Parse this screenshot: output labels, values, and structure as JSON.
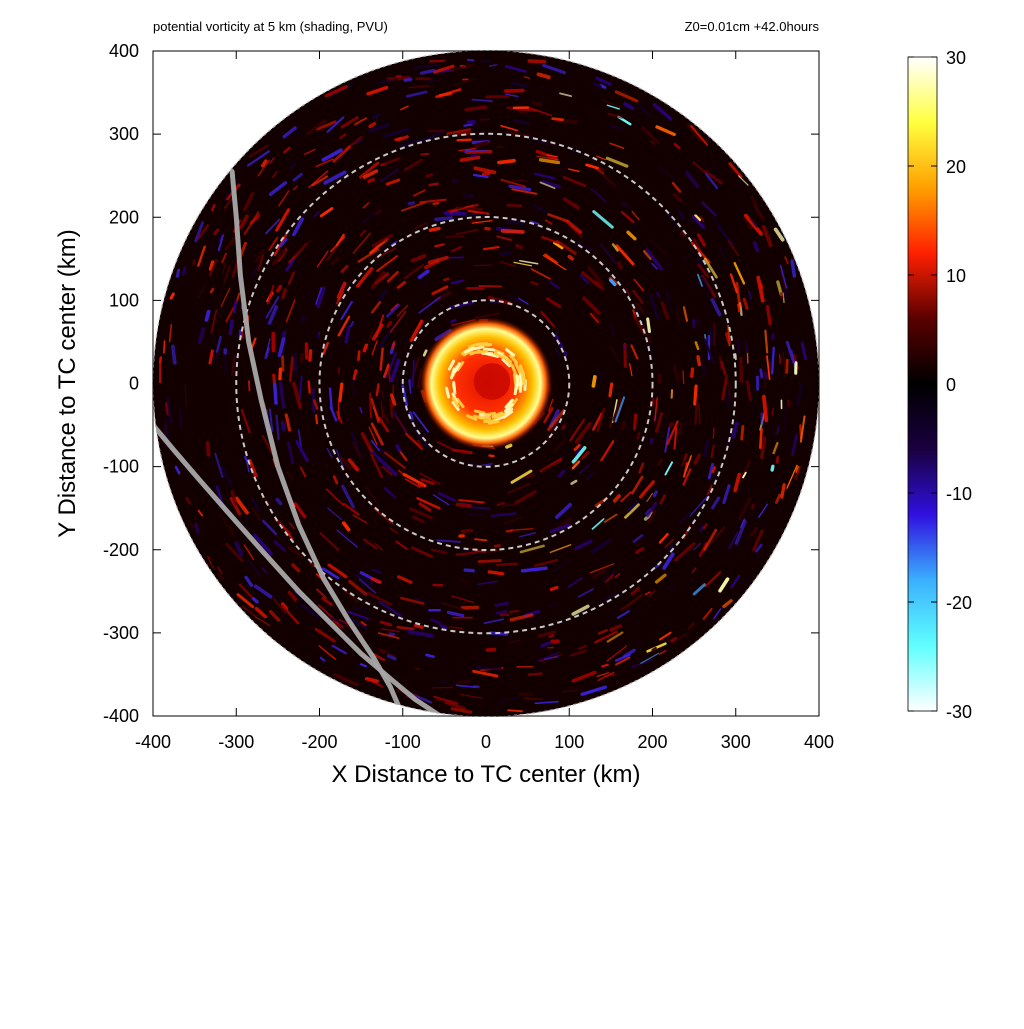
{
  "chart_data": {
    "type": "heatmap",
    "title": "potential vorticity at 5 km (shading, PVU)",
    "subtitle": "Z0=0.01cm  +42.0hours",
    "xlabel": "X Distance to TC center (km)",
    "ylabel": "Y Distance to TC center (km)",
    "xlim": [
      -400,
      400
    ],
    "ylim": [
      -400,
      400
    ],
    "x_ticks": [
      -400,
      -300,
      -200,
      -100,
      0,
      100,
      200,
      300,
      400
    ],
    "y_ticks": [
      -400,
      -300,
      -200,
      -100,
      0,
      100,
      200,
      300,
      400
    ],
    "x_tick_labels": [
      "-400",
      "-300",
      "-200",
      "-100",
      "0",
      "100",
      "200",
      "300",
      "400"
    ],
    "y_tick_labels": [
      "-400",
      "-300",
      "-200",
      "-100",
      "0",
      "100",
      "200",
      "300",
      "400"
    ],
    "domain_radius_km": 400,
    "range_rings_km": [
      100,
      200,
      300
    ],
    "colorbar": {
      "min": -30,
      "max": 30,
      "ticks": [
        30,
        20,
        10,
        0,
        -10,
        -20,
        -30
      ],
      "tick_labels": [
        "30",
        "20",
        "10",
        "0",
        "-10",
        "-20",
        "-30"
      ],
      "colors": [
        "#ffffff",
        "#ffff40",
        "#ffa000",
        "#ff2000",
        "#5a0000",
        "#000000",
        "#1a0040",
        "#3010e0",
        "#3ab0ff",
        "#60ffff",
        "#ffffff"
      ]
    },
    "features": {
      "eyewall_radius_km": 40,
      "eyewall_peak_pv": 30,
      "inner_core_pv": 15
    },
    "tracks": [
      {
        "name": "",
        "x": [
          -305,
          -300,
          -295,
          -285,
          -270,
          -250,
          -225,
          -195,
          -165,
          -135,
          -115,
          -100
        ],
        "y": [
          255,
          200,
          130,
          50,
          -20,
          -100,
          -170,
          -235,
          -285,
          -330,
          -365,
          -400
        ]
      },
      {
        "name": "",
        "x": [
          -400,
          -375,
          -345,
          -310,
          -270,
          -225,
          -185,
          -150,
          -115,
          -85,
          -55
        ],
        "y": [
          -50,
          -80,
          -115,
          -155,
          -200,
          -250,
          -290,
          -325,
          -355,
          -380,
          -400
        ]
      }
    ]
  }
}
